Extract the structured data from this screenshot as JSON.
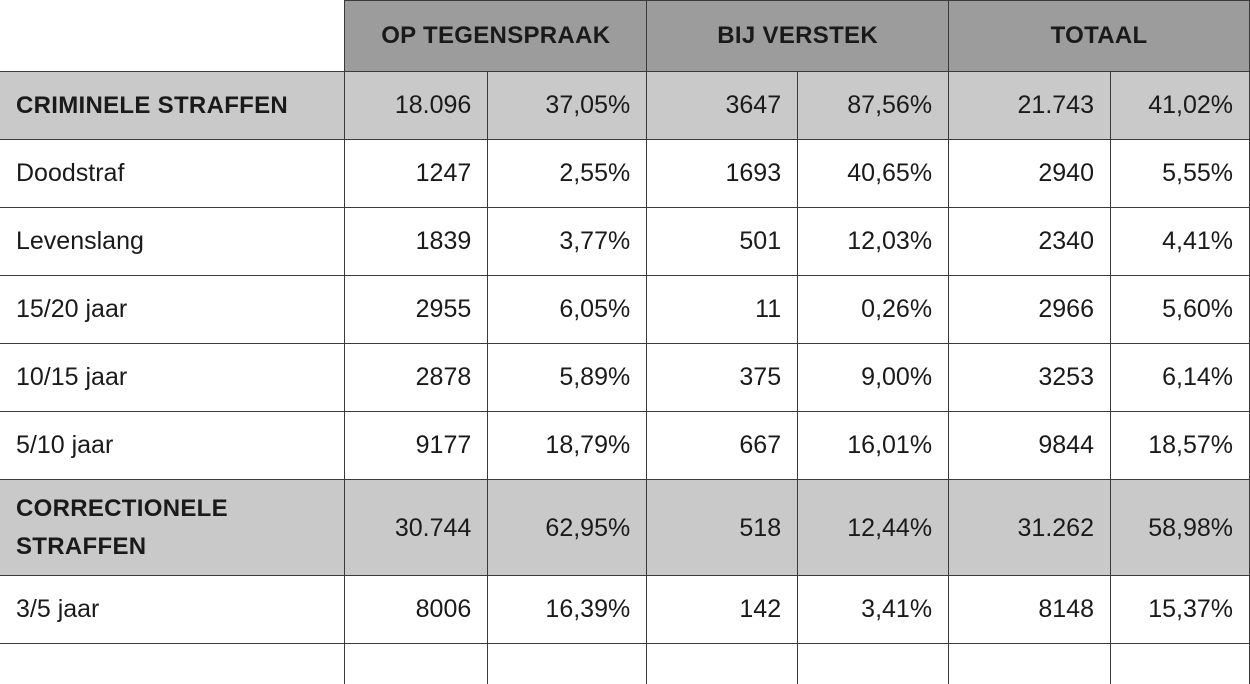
{
  "headers": [
    "OP TEGENSPRAAK",
    "BIJ VERSTEK",
    "TOTAAL"
  ],
  "rows": [
    {
      "label": "CRIMINELE STRAFFEN",
      "section": true,
      "values": [
        "18.096",
        "37,05%",
        "3647",
        "87,56%",
        "21.743",
        "41,02%"
      ]
    },
    {
      "label": "Doodstraf",
      "values": [
        "1247",
        "2,55%",
        "1693",
        "40,65%",
        "2940",
        "5,55%"
      ]
    },
    {
      "label": "Levenslang",
      "values": [
        "1839",
        "3,77%",
        "501",
        "12,03%",
        "2340",
        "4,41%"
      ]
    },
    {
      "label": "15/20 jaar",
      "values": [
        "2955",
        "6,05%",
        "11",
        "0,26%",
        "2966",
        "5,60%"
      ]
    },
    {
      "label": "10/15 jaar",
      "values": [
        "2878",
        "5,89%",
        "375",
        "9,00%",
        "3253",
        "6,14%"
      ]
    },
    {
      "label": "5/10 jaar",
      "values": [
        "9177",
        "18,79%",
        "667",
        "16,01%",
        "9844",
        "18,57%"
      ]
    },
    {
      "label": "CORRECTIONELE STRAFFEN",
      "section": true,
      "values": [
        "30.744",
        "62,95%",
        "518",
        "12,44%",
        "31.262",
        "58,98%"
      ]
    },
    {
      "label": "3/5 jaar",
      "values": [
        "8006",
        "16,39%",
        "142",
        "3,41%",
        "8148",
        "15,37%"
      ]
    }
  ]
}
